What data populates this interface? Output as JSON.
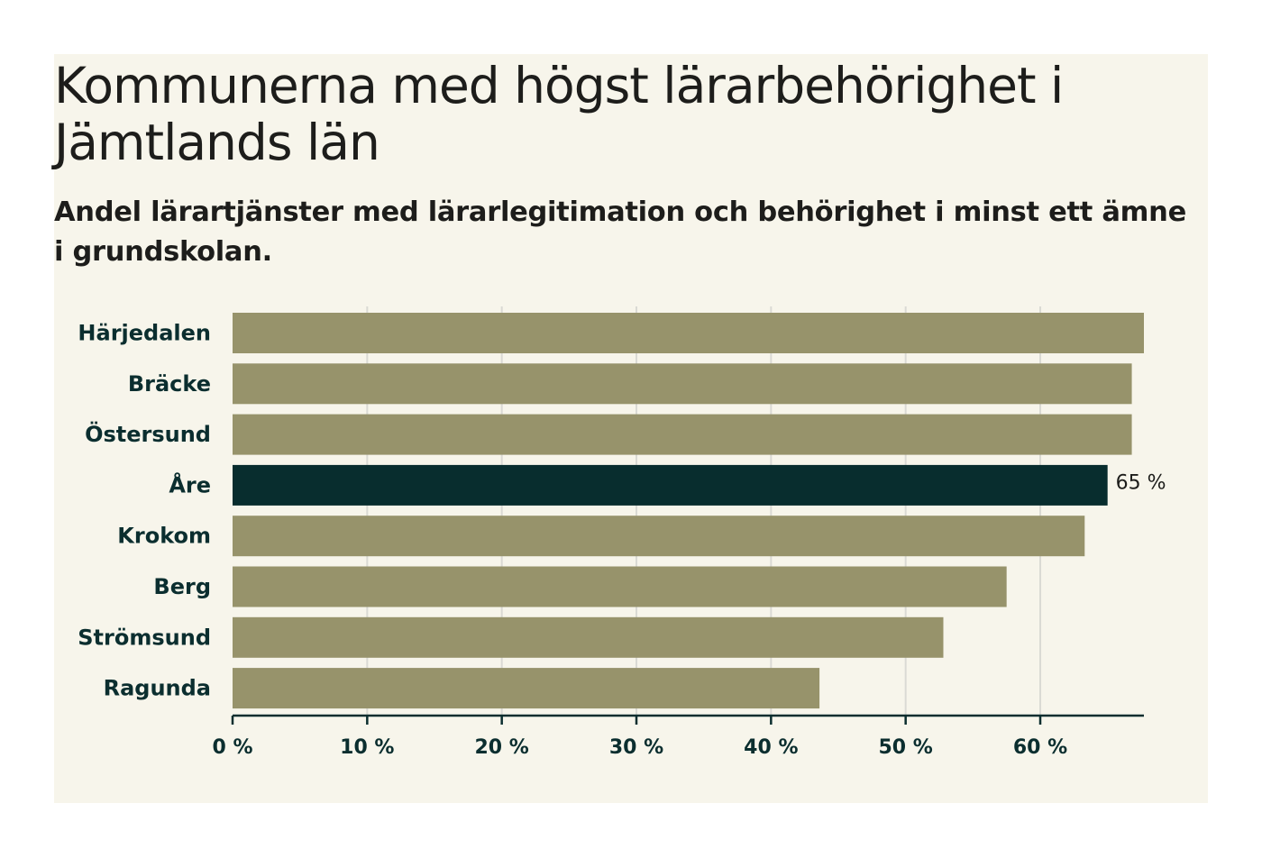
{
  "title": "Kommunerna med högst lärarbehörighet i Jämtlands län",
  "subtitle": "Andel lärartjänster med lärarlegitimation och behörighet i minst ett ämne i grundskolan.",
  "colors": {
    "bar": "#97936b",
    "highlight": "#082d2e",
    "grid": "#dadad4",
    "axis": "#0b2e2f",
    "background": "#f7f5eb"
  },
  "chart_data": {
    "type": "bar",
    "orientation": "horizontal",
    "title": "Kommunerna med högst lärarbehörighet i Jämtlands län",
    "subtitle": "Andel lärartjänster med lärarlegitimation och behörighet i minst ett ämne i grundskolan.",
    "categories": [
      "Härjedalen",
      "Bräcke",
      "Östersund",
      "Åre",
      "Krokom",
      "Berg",
      "Strömsund",
      "Ragunda"
    ],
    "values": [
      67.7,
      66.8,
      66.8,
      65,
      63.3,
      57.5,
      52.8,
      43.6
    ],
    "highlight_category": "Åre",
    "highlight_label": "65 %",
    "xlim": [
      0,
      67.7
    ],
    "xticks": [
      0,
      10,
      20,
      30,
      40,
      50,
      60
    ],
    "xtick_labels": [
      "0 %",
      "10 %",
      "20 %",
      "30 %",
      "40 %",
      "50 %",
      "60 %"
    ],
    "xlabel": "",
    "ylabel": "",
    "grid": true
  }
}
